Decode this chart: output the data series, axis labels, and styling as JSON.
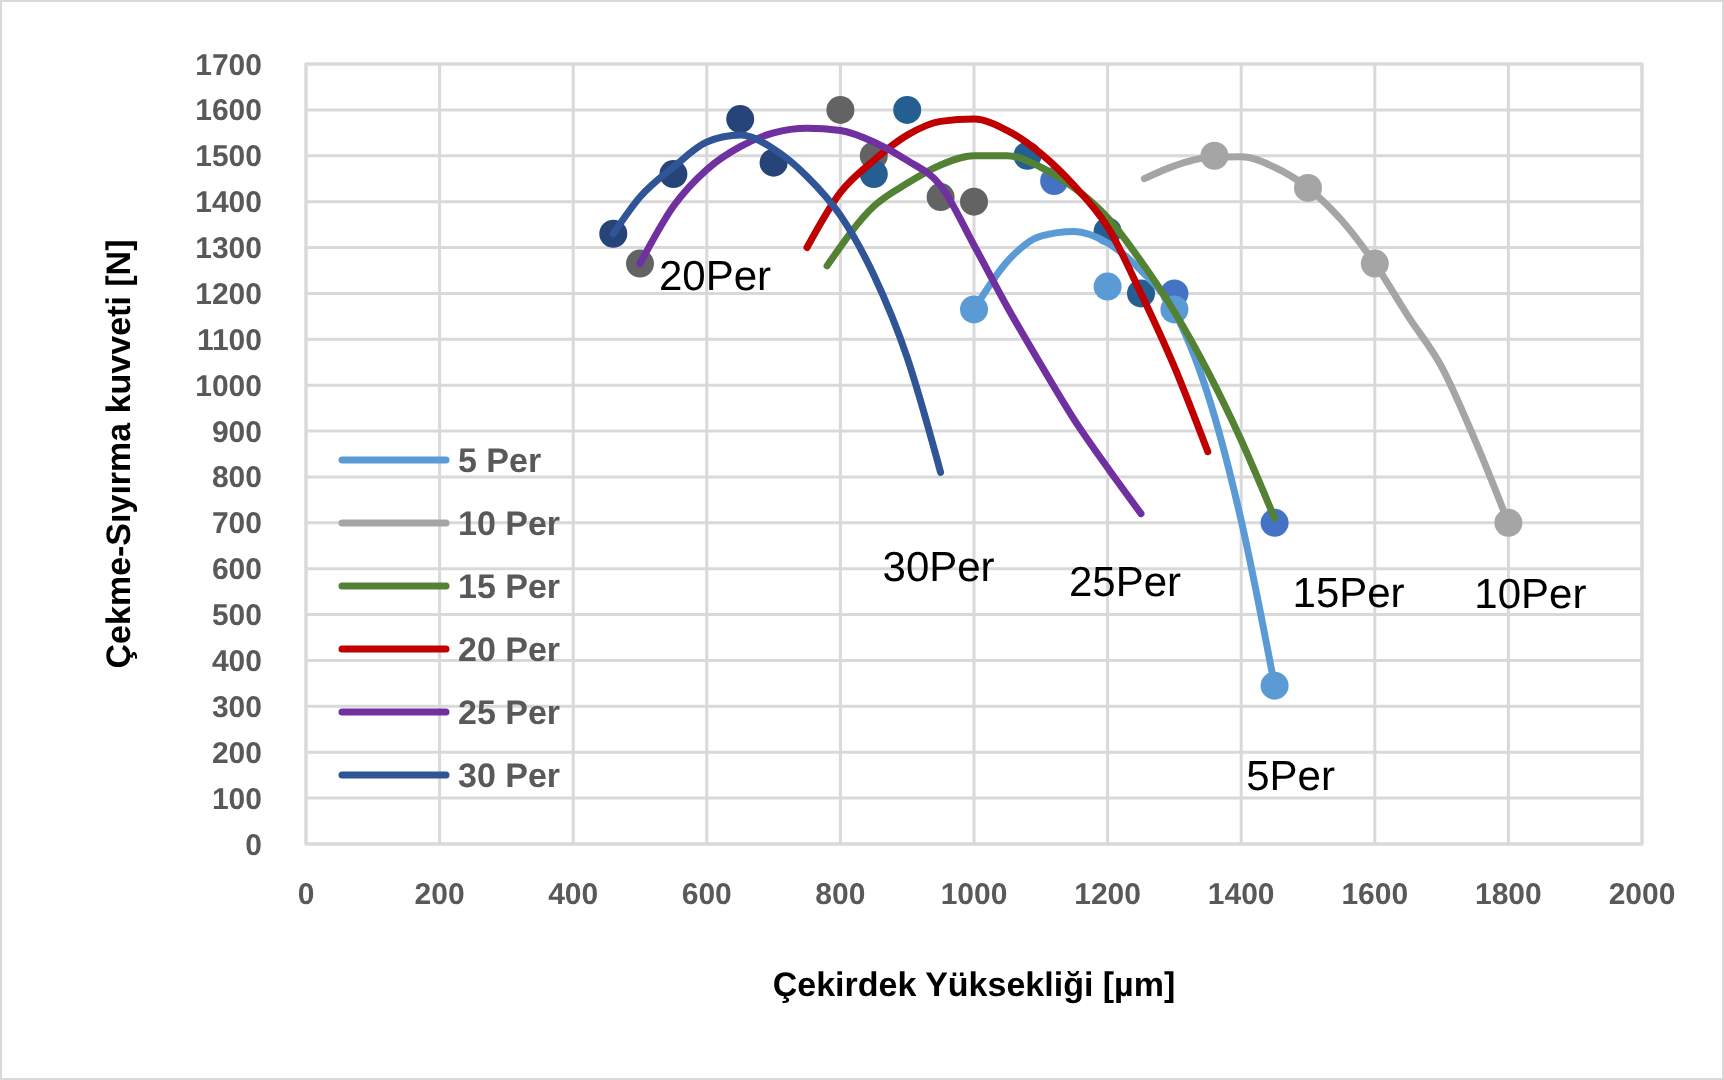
{
  "chart_data": {
    "type": "line",
    "xlabel": "Çekirdek Yüksekliği  [µm]",
    "ylabel": "Çekme-Sıyırma kuvveti   [N]",
    "xlim": [
      0,
      2000
    ],
    "ylim": [
      0,
      1700
    ],
    "xticks": [
      0,
      200,
      400,
      600,
      800,
      1000,
      1200,
      1400,
      1600,
      1800,
      2000
    ],
    "yticks": [
      0,
      100,
      200,
      300,
      400,
      500,
      600,
      700,
      800,
      900,
      1000,
      1100,
      1200,
      1300,
      1400,
      1500,
      1600,
      1700
    ],
    "grid": true,
    "legend": "left",
    "line_style": "solid",
    "series": [
      {
        "type": "scatter",
        "marker": "circle",
        "color": "#264478",
        "x": [
          460,
          550,
          650,
          700
        ],
        "values": [
          1330,
          1460,
          1580,
          1485
        ]
      },
      {
        "type": "scatter",
        "marker": "circle",
        "color": "#636363",
        "x": [
          500,
          800,
          850,
          950,
          1000
        ],
        "values": [
          1265,
          1600,
          1500,
          1410,
          1400
        ]
      },
      {
        "type": "scatter",
        "marker": "circle",
        "color": "#255e91",
        "x": [
          850,
          900,
          1080,
          1200,
          1250
        ],
        "values": [
          1460,
          1600,
          1500,
          1335,
          1200
        ]
      },
      {
        "type": "scatter",
        "marker": "circle",
        "color": "#4472c4",
        "x": [
          1120,
          1300,
          1450
        ],
        "values": [
          1445,
          1200,
          700
        ]
      },
      {
        "type": "scatter",
        "marker": "circle",
        "color": "#5b9bd5",
        "x": [
          1000,
          1200,
          1300,
          1450
        ],
        "values": [
          1165,
          1215,
          1165,
          345
        ]
      },
      {
        "type": "scatter",
        "marker": "circle",
        "color": "#a5a5a5",
        "x": [
          1360,
          1500,
          1600,
          1800
        ],
        "values": [
          1500,
          1430,
          1265,
          700
        ]
      },
      {
        "name": "5 Per",
        "color": "#5b9bd5",
        "marker": "none",
        "x": [
          1000,
          1050,
          1100,
          1150,
          1200,
          1250,
          1300,
          1350,
          1400,
          1450
        ],
        "values": [
          1165,
          1270,
          1325,
          1335,
          1310,
          1250,
          1160,
          980,
          705,
          345
        ]
      },
      {
        "name": "10 Per",
        "color": "#a5a5a5",
        "marker": "none",
        "x": [
          1255,
          1300,
          1350,
          1400,
          1450,
          1500,
          1550,
          1600,
          1650,
          1700,
          1750,
          1800
        ],
        "values": [
          1450,
          1478,
          1496,
          1498,
          1475,
          1430,
          1360,
          1265,
          1150,
          1040,
          880,
          700
        ]
      },
      {
        "name": "15 Per",
        "color": "#548235",
        "marker": "none",
        "x": [
          780,
          850,
          900,
          950,
          1000,
          1050,
          1100,
          1150,
          1200,
          1250,
          1300,
          1350,
          1400,
          1450
        ],
        "values": [
          1260,
          1390,
          1440,
          1480,
          1500,
          1500,
          1475,
          1430,
          1365,
          1270,
          1160,
          1030,
          880,
          710
        ]
      },
      {
        "name": "20 Per",
        "color": "#c00000",
        "marker": "none",
        "x": [
          750,
          800,
          850,
          900,
          950,
          1000,
          1050,
          1100,
          1150,
          1200,
          1250,
          1300,
          1350
        ],
        "values": [
          1300,
          1420,
          1490,
          1545,
          1575,
          1580,
          1555,
          1505,
          1435,
          1345,
          1200,
          1040,
          855
        ]
      },
      {
        "name": "25 Per",
        "color": "#7030a0",
        "marker": "none",
        "x": [
          500,
          550,
          600,
          650,
          700,
          750,
          800,
          850,
          900,
          950,
          1000,
          1050,
          1100,
          1150,
          1200,
          1250
        ],
        "values": [
          1265,
          1390,
          1470,
          1520,
          1550,
          1560,
          1555,
          1530,
          1490,
          1435,
          1305,
          1170,
          1045,
          925,
          820,
          720
        ]
      },
      {
        "name": "30 Per",
        "color": "#2f5597",
        "marker": "none",
        "x": [
          460,
          500,
          550,
          600,
          650,
          700,
          750,
          800,
          850,
          900,
          950
        ],
        "values": [
          1330,
          1410,
          1475,
          1530,
          1545,
          1515,
          1455,
          1370,
          1240,
          1060,
          810
        ]
      }
    ],
    "annotations": [
      "5Per",
      "10Per",
      "15Per",
      "20Per",
      "25Per",
      "30Per"
    ]
  }
}
